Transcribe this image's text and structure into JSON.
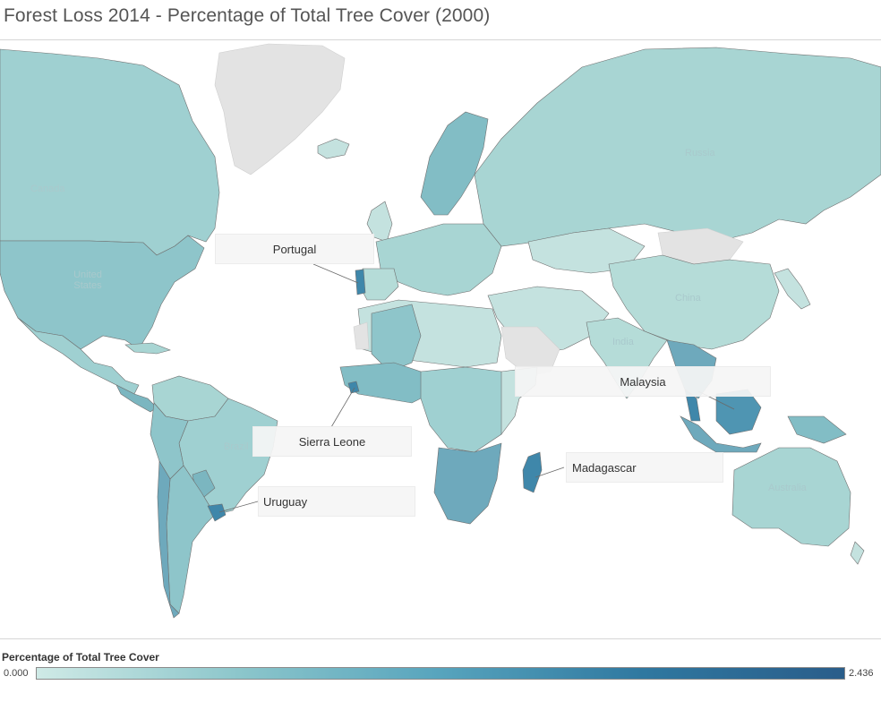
{
  "title": "Forest Loss 2014 - Percentage of Total Tree Cover (2000)",
  "colors": {
    "no_data": "#e3e3e3",
    "low": "#cfeae6",
    "mid": "#8cc6cb",
    "high": "#2a5d8a",
    "border": "#6f6f6f"
  },
  "country_labels": {
    "canada": "Canada",
    "united_states": "United States",
    "russia": "Russia",
    "china": "China",
    "india": "India",
    "brazil": "Brazil",
    "australia": "Australia"
  },
  "callouts": {
    "portugal": "Portugal",
    "sierra_leone": "Sierra Leone",
    "malaysia": "Malaysia",
    "madagascar": "Madagascar",
    "uruguay": "Uruguay"
  },
  "legend": {
    "title": "Percentage of Total Tree Cover",
    "min": "0.000",
    "max": "2.436"
  }
}
